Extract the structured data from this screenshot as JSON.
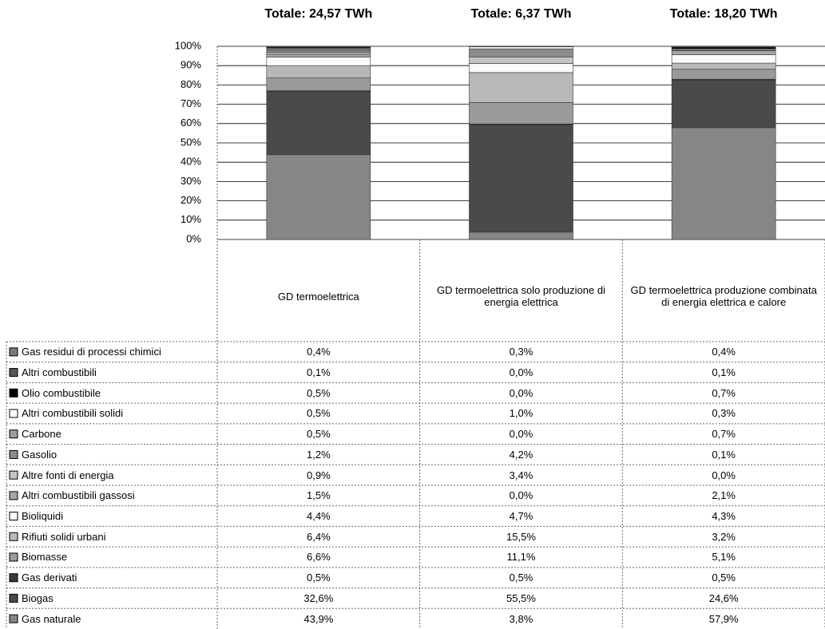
{
  "chart_data": {
    "type": "bar",
    "stacked": true,
    "annotations": [
      "Totale: 24,57 TWh",
      "Totale: 6,37 TWh",
      "Totale: 18,20 TWh"
    ],
    "categories": [
      "GD termoelettrica",
      "GD termoelettrica solo produzione di energia elettrica",
      "GD termoelettrica produzione combinata di energia elettrica e calore"
    ],
    "ylim": [
      0,
      100
    ],
    "yticks": [
      {
        "value": 0,
        "label": "0%"
      },
      {
        "value": 10,
        "label": "10%"
      },
      {
        "value": 20,
        "label": "20%"
      },
      {
        "value": 30,
        "label": "30%"
      },
      {
        "value": 40,
        "label": "40%"
      },
      {
        "value": 50,
        "label": "50%"
      },
      {
        "value": 60,
        "label": "60%"
      },
      {
        "value": 70,
        "label": "70%"
      },
      {
        "value": 80,
        "label": "80%"
      },
      {
        "value": 90,
        "label": "90%"
      },
      {
        "value": 100,
        "label": "100%"
      }
    ],
    "grid": true,
    "series": [
      {
        "name": "Gas residui di processi chimici",
        "color": "#7a7a7a",
        "values": [
          0.4,
          0.3,
          0.4
        ],
        "value_labels": [
          "0,4%",
          "0,3%",
          "0,4%"
        ]
      },
      {
        "name": "Altri combustibili",
        "color": "#555555",
        "values": [
          0.1,
          0.0,
          0.1
        ],
        "value_labels": [
          "0,1%",
          "0,0%",
          "0,1%"
        ]
      },
      {
        "name": "Olio combustibile",
        "color": "#000000",
        "values": [
          0.5,
          0.0,
          0.7
        ],
        "value_labels": [
          "0,5%",
          "0,0%",
          "0,7%"
        ]
      },
      {
        "name": "Altri combustibili solidi",
        "color": "#ffffff",
        "values": [
          0.5,
          1.0,
          0.3
        ],
        "value_labels": [
          "0,5%",
          "1,0%",
          "0,3%"
        ]
      },
      {
        "name": "Carbone",
        "color": "#9c9c9c",
        "values": [
          0.5,
          0.0,
          0.7
        ],
        "value_labels": [
          "0,5%",
          "0,0%",
          "0,7%"
        ]
      },
      {
        "name": "Gasolio",
        "color": "#8c8c8c",
        "values": [
          1.2,
          4.2,
          0.1
        ],
        "value_labels": [
          "1,2%",
          "4,2%",
          "0,1%"
        ]
      },
      {
        "name": "Altre fonti di energia",
        "color": "#c4c4c4",
        "values": [
          0.9,
          3.4,
          0.0
        ],
        "value_labels": [
          "0,9%",
          "3,4%",
          "0,0%"
        ]
      },
      {
        "name": "Altri combustibili gassosi",
        "color": "#a6a6a6",
        "values": [
          1.5,
          0.0,
          2.1
        ],
        "value_labels": [
          "1,5%",
          "0,0%",
          "2,1%"
        ]
      },
      {
        "name": "Bioliquidi",
        "color": "#fafafa",
        "values": [
          4.4,
          4.7,
          4.3
        ],
        "value_labels": [
          "4,4%",
          "4,7%",
          "4,3%"
        ]
      },
      {
        "name": "Rifiuti solidi urbani",
        "color": "#b8b8b8",
        "values": [
          6.4,
          15.5,
          3.2
        ],
        "value_labels": [
          "6,4%",
          "15,5%",
          "3,2%"
        ]
      },
      {
        "name": "Biomasse",
        "color": "#9a9a9a",
        "values": [
          6.6,
          11.1,
          5.1
        ],
        "value_labels": [
          "6,6%",
          "11,1%",
          "5,1%"
        ]
      },
      {
        "name": "Gas derivati",
        "color": "#3c3c3c",
        "values": [
          0.5,
          0.5,
          0.5
        ],
        "value_labels": [
          "0,5%",
          "0,5%",
          "0,5%"
        ]
      },
      {
        "name": "Biogas",
        "color": "#4a4a4a",
        "values": [
          32.6,
          55.5,
          24.6
        ],
        "value_labels": [
          "32,6%",
          "55,5%",
          "24,6%"
        ]
      },
      {
        "name": "Gas naturale",
        "color": "#868686",
        "values": [
          43.9,
          3.8,
          57.9
        ],
        "value_labels": [
          "43,9%",
          "3,8%",
          "57,9%"
        ]
      }
    ]
  }
}
